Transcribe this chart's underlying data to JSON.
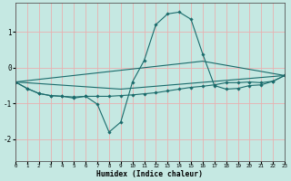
{
  "xlabel": "Humidex (Indice chaleur)",
  "bg_color": "#c5e8e2",
  "line_color": "#1a6b6b",
  "grid_color": "#e8b0b0",
  "xlim": [
    0,
    23
  ],
  "ylim": [
    -2.6,
    1.8
  ],
  "xticks": [
    0,
    1,
    2,
    3,
    4,
    5,
    6,
    7,
    8,
    9,
    10,
    11,
    12,
    13,
    14,
    15,
    16,
    17,
    18,
    19,
    20,
    21,
    22,
    23
  ],
  "yticks": [
    -2,
    -1,
    0,
    1
  ],
  "line1_x": [
    0,
    1,
    2,
    3,
    4,
    5,
    6,
    7,
    8,
    9,
    10,
    11,
    12,
    13,
    14,
    15,
    16,
    17,
    18,
    19,
    20,
    21,
    22,
    23
  ],
  "line1_y": [
    -0.4,
    -0.58,
    -0.72,
    -0.78,
    -0.8,
    -0.82,
    -0.8,
    -0.8,
    -0.8,
    -0.78,
    -0.76,
    -0.73,
    -0.7,
    -0.65,
    -0.6,
    -0.55,
    -0.52,
    -0.48,
    -0.42,
    -0.42,
    -0.4,
    -0.42,
    -0.38,
    -0.22
  ],
  "line2_x": [
    0,
    1,
    2,
    3,
    4,
    5,
    6,
    7,
    8,
    9,
    10,
    11,
    12,
    13,
    14,
    15,
    16,
    17,
    18,
    19,
    20,
    21,
    22,
    23
  ],
  "line2_y": [
    -0.4,
    -0.58,
    -0.72,
    -0.78,
    -0.8,
    -0.85,
    -0.8,
    -1.02,
    -1.8,
    -1.52,
    -0.4,
    0.2,
    1.2,
    1.5,
    1.55,
    1.35,
    0.38,
    -0.5,
    -0.6,
    -0.58,
    -0.5,
    -0.48,
    -0.38,
    -0.22
  ],
  "line3_x": [
    0,
    16,
    23
  ],
  "line3_y": [
    -0.4,
    0.18,
    -0.22
  ],
  "line4_x": [
    0,
    9,
    23
  ],
  "line4_y": [
    -0.4,
    -0.6,
    -0.22
  ]
}
